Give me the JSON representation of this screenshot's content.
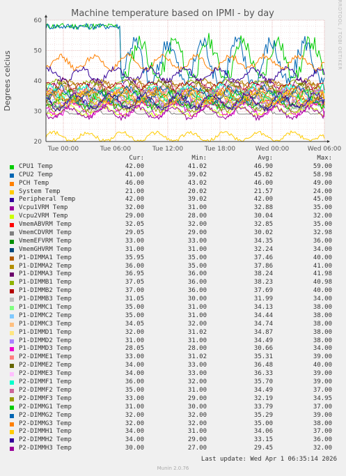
{
  "chart_data": {
    "type": "line",
    "title": "Machine temperature based on IPMI - by day",
    "ylabel": "Degrees celcius",
    "side_label": "RRDTOOL / TOBI OETIKER",
    "ylim": [
      20,
      60
    ],
    "yticks": [
      20,
      30,
      40,
      50,
      60
    ],
    "xlim": [
      -2,
      30
    ],
    "xticks": [
      {
        "v": 0,
        "label": "Tue 00:00"
      },
      {
        "v": 6,
        "label": "Tue 06:00"
      },
      {
        "v": 12,
        "label": "Tue 12:00"
      },
      {
        "v": 18,
        "label": "Tue 18:00"
      },
      {
        "v": 24,
        "label": "Wed 00:00"
      },
      {
        "v": 30,
        "label": "Wed 06:00"
      }
    ],
    "columns": [
      "Cur:",
      "Min:",
      "Avg:",
      "Max:"
    ],
    "series": [
      {
        "name": "CPU1 Temp",
        "color": "#00cc00",
        "cur": "42.00",
        "min": "41.02",
        "avg": "46.90",
        "max": "59.00"
      },
      {
        "name": "CPU2 Temp",
        "color": "#0066b3",
        "cur": "41.00",
        "min": "39.02",
        "avg": "45.82",
        "max": "58.98"
      },
      {
        "name": "PCH Temp",
        "color": "#ff8000",
        "cur": "46.00",
        "min": "43.02",
        "avg": "46.00",
        "max": "49.00"
      },
      {
        "name": "System Temp",
        "color": "#ffcc00",
        "cur": "21.00",
        "min": "20.02",
        "avg": "21.57",
        "max": "24.00"
      },
      {
        "name": "Peripheral Temp",
        "color": "#330099",
        "cur": "42.00",
        "min": "39.02",
        "avg": "42.00",
        "max": "45.00"
      },
      {
        "name": "Vcpu1VRM Temp",
        "color": "#990099",
        "cur": "32.00",
        "min": "31.00",
        "avg": "32.88",
        "max": "35.00"
      },
      {
        "name": "Vcpu2VRM Temp",
        "color": "#ccff00",
        "cur": "29.00",
        "min": "28.00",
        "avg": "30.04",
        "max": "32.00"
      },
      {
        "name": "VmemABVRM Temp",
        "color": "#ff0000",
        "cur": "32.05",
        "min": "32.00",
        "avg": "32.85",
        "max": "35.00"
      },
      {
        "name": "VmemCDVRM Temp",
        "color": "#808080",
        "cur": "29.05",
        "min": "29.00",
        "avg": "30.02",
        "max": "32.98"
      },
      {
        "name": "VmemEFVRM Temp",
        "color": "#008f00",
        "cur": "33.00",
        "min": "33.00",
        "avg": "34.35",
        "max": "36.00"
      },
      {
        "name": "VmemGHVRM Temp",
        "color": "#00487d",
        "cur": "31.00",
        "min": "31.00",
        "avg": "32.24",
        "max": "34.00"
      },
      {
        "name": "P1-DIMMA1 Temp",
        "color": "#b35a00",
        "cur": "35.95",
        "min": "35.00",
        "avg": "37.46",
        "max": "40.00"
      },
      {
        "name": "P1-DIMMA2 Temp",
        "color": "#b38f00",
        "cur": "36.00",
        "min": "35.00",
        "avg": "37.86",
        "max": "41.00"
      },
      {
        "name": "P1-DIMMA3 Temp",
        "color": "#6b006b",
        "cur": "36.95",
        "min": "36.00",
        "avg": "38.24",
        "max": "41.98"
      },
      {
        "name": "P1-DIMMB1 Temp",
        "color": "#8fb300",
        "cur": "37.05",
        "min": "36.00",
        "avg": "38.23",
        "max": "40.98"
      },
      {
        "name": "P1-DIMMB2 Temp",
        "color": "#b30000",
        "cur": "37.00",
        "min": "36.00",
        "avg": "37.69",
        "max": "40.00"
      },
      {
        "name": "P1-DIMMB3 Temp",
        "color": "#bebebe",
        "cur": "31.05",
        "min": "30.00",
        "avg": "31.99",
        "max": "34.00"
      },
      {
        "name": "P1-DIMMC1 Temp",
        "color": "#80ff80",
        "cur": "35.00",
        "min": "31.00",
        "avg": "34.13",
        "max": "38.00"
      },
      {
        "name": "P1-DIMMC2 Temp",
        "color": "#80c9ff",
        "cur": "35.00",
        "min": "31.00",
        "avg": "34.44",
        "max": "38.00"
      },
      {
        "name": "P1-DIMMC3 Temp",
        "color": "#ffc080",
        "cur": "34.05",
        "min": "32.00",
        "avg": "34.74",
        "max": "38.00"
      },
      {
        "name": "P1-DIMMD1 Temp",
        "color": "#ffe680",
        "cur": "32.00",
        "min": "31.02",
        "avg": "34.87",
        "max": "38.00"
      },
      {
        "name": "P1-DIMMD2 Temp",
        "color": "#aa80ff",
        "cur": "31.00",
        "min": "31.00",
        "avg": "34.49",
        "max": "38.00"
      },
      {
        "name": "P1-DIMMD3 Temp",
        "color": "#ee00cc",
        "cur": "28.05",
        "min": "28.00",
        "avg": "30.66",
        "max": "34.00"
      },
      {
        "name": "P2-DIMME1 Temp",
        "color": "#ff8080",
        "cur": "33.00",
        "min": "31.02",
        "avg": "35.31",
        "max": "39.00"
      },
      {
        "name": "P2-DIMME2 Temp",
        "color": "#666600",
        "cur": "34.00",
        "min": "33.00",
        "avg": "36.48",
        "max": "40.00"
      },
      {
        "name": "P2-DIMME3 Temp",
        "color": "#ffbfff",
        "cur": "34.00",
        "min": "33.00",
        "avg": "36.33",
        "max": "39.00"
      },
      {
        "name": "P2-DIMMF1 Temp",
        "color": "#00ffcc",
        "cur": "36.00",
        "min": "32.00",
        "avg": "35.70",
        "max": "39.00"
      },
      {
        "name": "P2-DIMMF2 Temp",
        "color": "#cc6699",
        "cur": "35.00",
        "min": "31.00",
        "avg": "34.49",
        "max": "37.00"
      },
      {
        "name": "P2-DIMMF3 Temp",
        "color": "#999900",
        "cur": "33.00",
        "min": "29.00",
        "avg": "32.19",
        "max": "34.95"
      },
      {
        "name": "P2-DIMMG1 Temp",
        "color": "#00cc00",
        "cur": "31.00",
        "min": "30.00",
        "avg": "33.79",
        "max": "37.00"
      },
      {
        "name": "P2-DIMMG2 Temp",
        "color": "#0066b3",
        "cur": "32.00",
        "min": "32.00",
        "avg": "35.29",
        "max": "39.00"
      },
      {
        "name": "P2-DIMMG3 Temp",
        "color": "#ff8000",
        "cur": "32.00",
        "min": "32.00",
        "avg": "35.00",
        "max": "38.00"
      },
      {
        "name": "P2-DIMMH1 Temp",
        "color": "#ffcc00",
        "cur": "34.00",
        "min": "31.00",
        "avg": "34.06",
        "max": "37.00"
      },
      {
        "name": "P2-DIMMH2 Temp",
        "color": "#330099",
        "cur": "34.00",
        "min": "29.00",
        "avg": "33.15",
        "max": "36.00"
      },
      {
        "name": "P2-DIMMH3 Temp",
        "color": "#990099",
        "cur": "30.00",
        "min": "27.00",
        "avg": "29.45",
        "max": "32.00"
      }
    ]
  },
  "footer": {
    "last_update": "Last update: Wed Apr  1 06:35:14 2026",
    "generator": "Munin 2.0.76"
  }
}
